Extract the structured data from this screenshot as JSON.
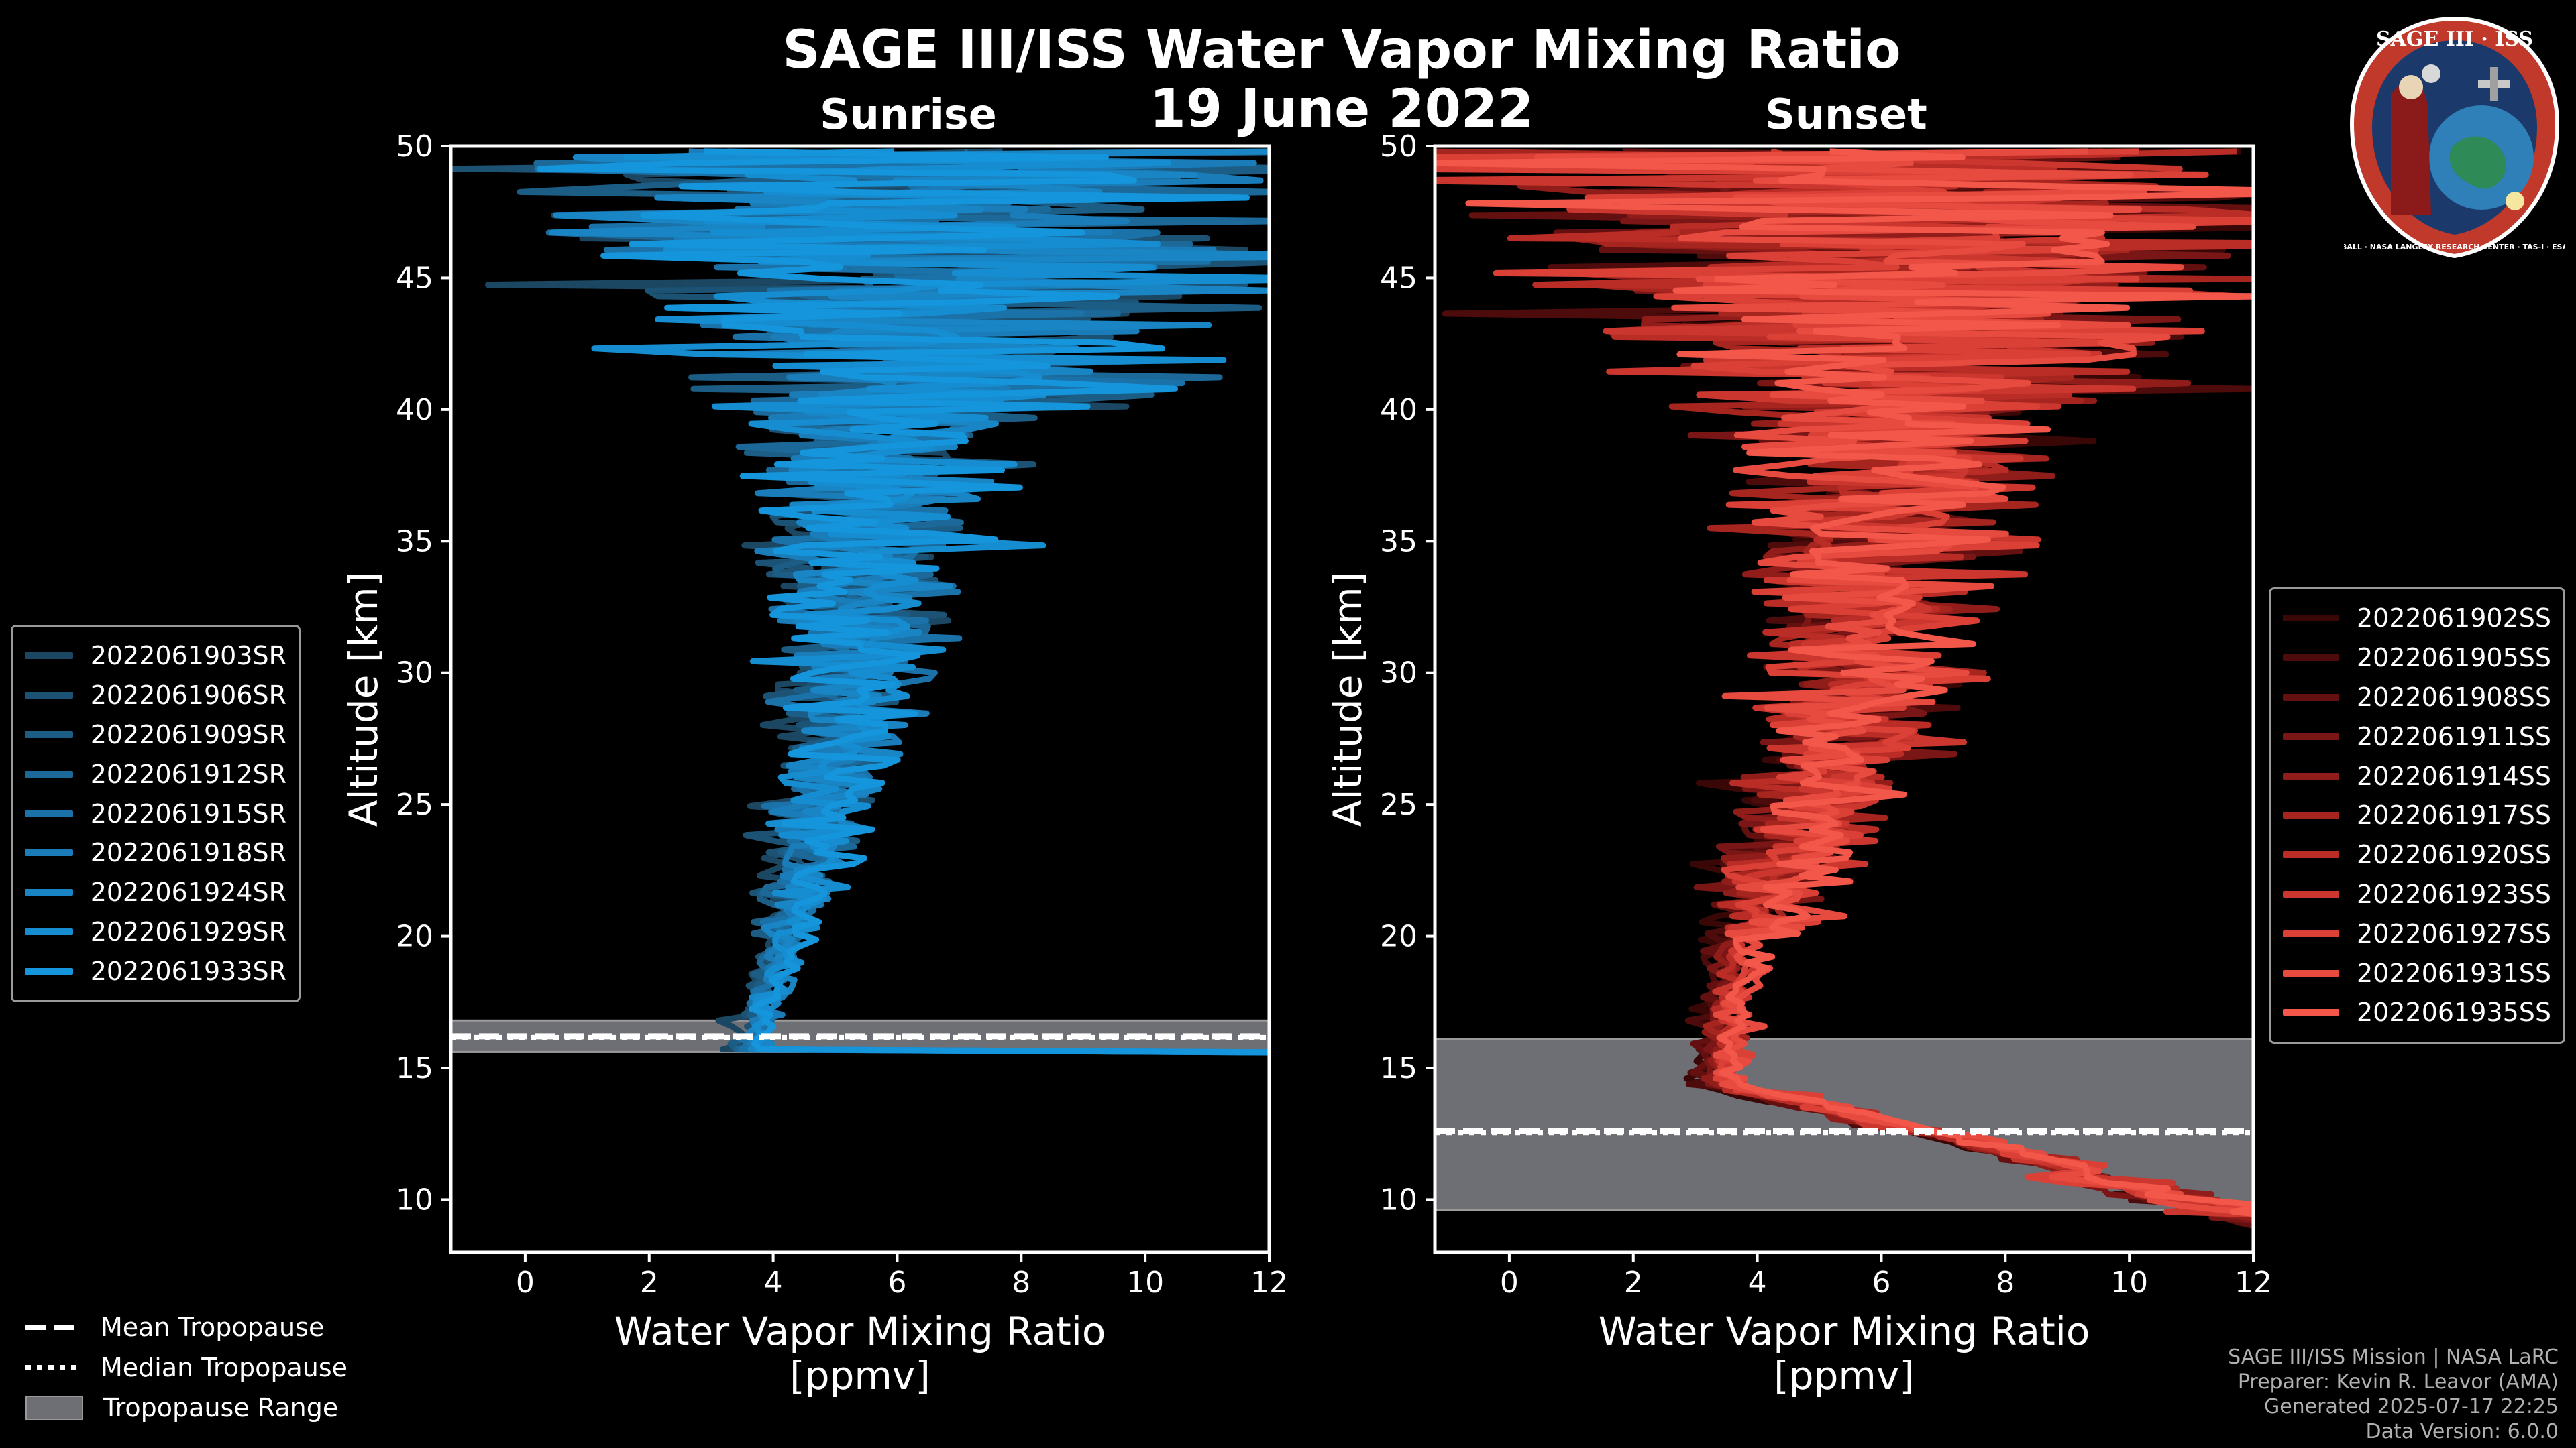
{
  "title": "SAGE III/ISS Water Vapor Mixing Ratio",
  "date": "19 June 2022",
  "colors": {
    "background": "#000000",
    "sunrise": "#1a8fd0",
    "sunset": "#f0574a",
    "tropopause_range": "#6e6f74",
    "axis": "#ffffff"
  },
  "chart_data": [
    {
      "type": "line",
      "title": "Sunrise",
      "xlabel": "Water Vapor Mixing Ratio\n[ppmv]",
      "xlabel_line1": "Water Vapor Mixing Ratio",
      "xlabel_line2": "[ppmv]",
      "ylabel": "Altitude [km]",
      "xlim": [
        -1.2,
        12
      ],
      "ylim": [
        8,
        50
      ],
      "xticks": [
        "0",
        "2",
        "4",
        "6",
        "8",
        "10",
        "12"
      ],
      "yticks": [
        "10",
        "15",
        "20",
        "25",
        "30",
        "35",
        "40",
        "45",
        "50"
      ],
      "series": [
        {
          "name": "2022061903SR",
          "color": "#1b4763"
        },
        {
          "name": "2022061906SR",
          "color": "#1c5274"
        },
        {
          "name": "2022061909SR",
          "color": "#1c5d86"
        },
        {
          "name": "2022061912SR",
          "color": "#1c6898"
        },
        {
          "name": "2022061915SR",
          "color": "#1b72a8"
        },
        {
          "name": "2022061918SR",
          "color": "#1a7cb8"
        },
        {
          "name": "2022061924SR",
          "color": "#1985c5"
        },
        {
          "name": "2022061929SR",
          "color": "#178dd1"
        },
        {
          "name": "2022061933SR",
          "color": "#1595db"
        }
      ],
      "tropopause": {
        "mean_km": 16.2,
        "median_km": 16.2,
        "range_km": [
          15.6,
          16.8
        ]
      }
    },
    {
      "type": "line",
      "title": "Sunset",
      "xlabel": "Water Vapor Mixing Ratio\n[ppmv]",
      "xlabel_line1": "Water Vapor Mixing Ratio",
      "xlabel_line2": "[ppmv]",
      "ylabel": "Altitude [km]",
      "xlim": [
        -1.2,
        12
      ],
      "ylim": [
        8,
        50
      ],
      "xticks": [
        "0",
        "2",
        "4",
        "6",
        "8",
        "10",
        "12"
      ],
      "yticks": [
        "10",
        "15",
        "20",
        "25",
        "30",
        "35",
        "40",
        "45",
        "50"
      ],
      "series": [
        {
          "name": "2022061902SS",
          "color": "#3a0707"
        },
        {
          "name": "2022061905SS",
          "color": "#4e0b0b"
        },
        {
          "name": "2022061908SS",
          "color": "#641010"
        },
        {
          "name": "2022061911SS",
          "color": "#7a1616"
        },
        {
          "name": "2022061914SS",
          "color": "#901d1a"
        },
        {
          "name": "2022061917SS",
          "color": "#a6251f"
        },
        {
          "name": "2022061920SS",
          "color": "#b92d26"
        },
        {
          "name": "2022061923SS",
          "color": "#cb372e"
        },
        {
          "name": "2022061927SS",
          "color": "#da4036"
        },
        {
          "name": "2022061931SS",
          "color": "#e74b40"
        },
        {
          "name": "2022061935SS",
          "color": "#f2574a"
        }
      ],
      "tropopause": {
        "mean_km": 12.6,
        "median_km": 12.6,
        "range_km": [
          9.6,
          16.1
        ]
      }
    }
  ],
  "tropopause_legend": {
    "mean": "Mean Tropopause",
    "median": "Median Tropopause",
    "range": "Tropopause Range"
  },
  "credits": {
    "line1": "SAGE III/ISS Mission | NASA LaRC",
    "line2": "Preparer: Kevin R. Leavor (AMA)",
    "line3": "Generated 2025-07-17 22:25",
    "line4": "Data Version: 6.0.0"
  },
  "logo": {
    "top_text": "SAGE III · ISS",
    "ring_text": "BALL · NASA LANGLEY RESEARCH CENTER · TAS-I · ESA"
  }
}
